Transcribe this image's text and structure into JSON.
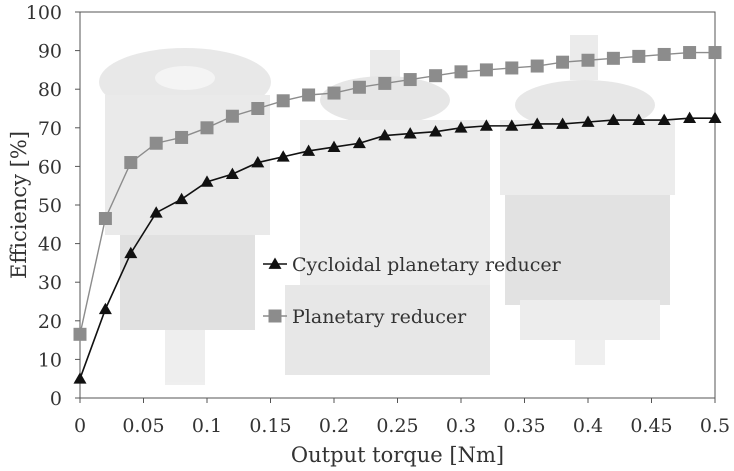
{
  "chart_data": {
    "type": "line",
    "xlabel": "Output torque [Nm]",
    "ylabel": "Efficiency [%]",
    "xlim": [
      0,
      0.5
    ],
    "ylim": [
      0,
      100
    ],
    "x_ticks": [
      0,
      0.05,
      0.1,
      0.15,
      0.2,
      0.25,
      0.3,
      0.35,
      0.4,
      0.45,
      0.5
    ],
    "x_tick_labels": [
      "0",
      "0.05",
      "0.1",
      "0.15",
      "0.2",
      "0.25",
      "0.3",
      "0.35",
      "0.4",
      "0.45",
      "0.5"
    ],
    "y_ticks": [
      0,
      10,
      20,
      30,
      40,
      50,
      60,
      70,
      80,
      90,
      100
    ],
    "y_tick_labels": [
      "0",
      "10",
      "20",
      "30",
      "40",
      "50",
      "60",
      "70",
      "80",
      "90",
      "100"
    ],
    "grid": false,
    "legend_position": "center",
    "background": "faint photograph of gear reducers",
    "series": [
      {
        "name": "Cycloidal planetary reducer",
        "marker": "triangle",
        "color": "#111111",
        "x": [
          0,
          0.02,
          0.04,
          0.06,
          0.08,
          0.1,
          0.12,
          0.14,
          0.16,
          0.18,
          0.2,
          0.22,
          0.24,
          0.26,
          0.28,
          0.3,
          0.32,
          0.34,
          0.36,
          0.38,
          0.4,
          0.42,
          0.44,
          0.46,
          0.48,
          0.5
        ],
        "y": [
          5,
          23,
          37.5,
          48,
          51.5,
          56,
          58,
          61,
          62.5,
          64,
          65,
          66,
          68,
          68.5,
          69,
          70,
          70.5,
          70.5,
          71,
          71,
          71.5,
          72,
          72,
          72,
          72.5,
          72.5
        ]
      },
      {
        "name": "Planetary reducer",
        "marker": "square",
        "color": "#8c8c8c",
        "x": [
          0,
          0.02,
          0.04,
          0.06,
          0.08,
          0.1,
          0.12,
          0.14,
          0.16,
          0.18,
          0.2,
          0.22,
          0.24,
          0.26,
          0.28,
          0.3,
          0.32,
          0.34,
          0.36,
          0.38,
          0.4,
          0.42,
          0.44,
          0.46,
          0.48,
          0.5
        ],
        "y": [
          16.5,
          46.5,
          61,
          66,
          67.5,
          70,
          73,
          75,
          77,
          78.5,
          79,
          80.5,
          81.5,
          82.5,
          83.5,
          84.5,
          85,
          85.5,
          86,
          87,
          87.5,
          88,
          88.5,
          89,
          89.5,
          89.5
        ]
      }
    ]
  }
}
